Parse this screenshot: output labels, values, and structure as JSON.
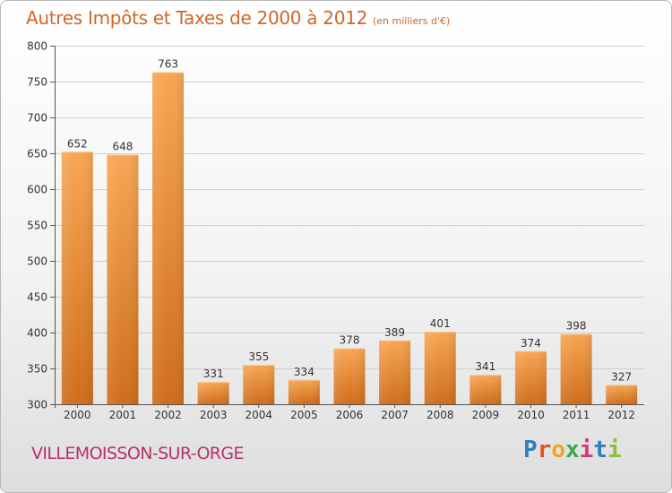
{
  "title": "Autres Impôts et Taxes de 2000 à 2012",
  "subtitle": "(en milliers d'€)",
  "city": "VILLEMOISSON-SUR-ORGE",
  "brand": {
    "letters": [
      "P",
      "r",
      "o",
      "x",
      "i",
      "t",
      "i"
    ],
    "colors": [
      "#2f7fc1",
      "#e0532c",
      "#f3a526",
      "#3aaa45",
      "#d13c7c",
      "#2f7fc1",
      "#8cbf3a"
    ]
  },
  "colors": {
    "bar": "#ef8f3b",
    "text": "#d0672a",
    "city": "#b5336b",
    "grid": "#cfcfcf"
  },
  "chart_data": {
    "type": "bar",
    "categories": [
      "2000",
      "2001",
      "2002",
      "2003",
      "2004",
      "2005",
      "2006",
      "2007",
      "2008",
      "2009",
      "2010",
      "2011",
      "2012"
    ],
    "values": [
      652,
      648,
      763,
      331,
      355,
      334,
      378,
      389,
      401,
      341,
      374,
      398,
      327
    ],
    "ylim": [
      300,
      800
    ],
    "yticks": [
      300,
      350,
      400,
      450,
      500,
      550,
      600,
      650,
      700,
      750,
      800
    ],
    "grid": true
  }
}
